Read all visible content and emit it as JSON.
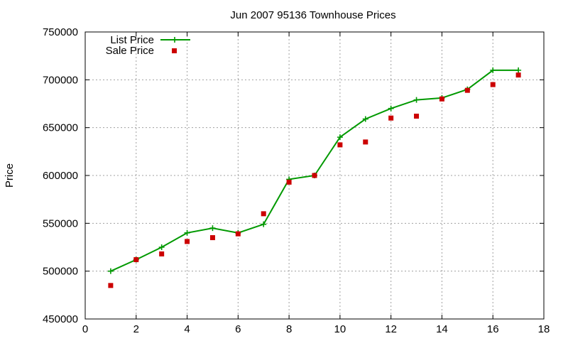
{
  "chart_data": {
    "type": "line",
    "title": "Jun 2007 95136 Townhouse Prices",
    "xlabel": "",
    "ylabel": "Price",
    "xlim": [
      0,
      18
    ],
    "ylim": [
      450000,
      750000
    ],
    "x_ticks": [
      0,
      2,
      4,
      6,
      8,
      10,
      12,
      14,
      16,
      18
    ],
    "y_ticks": [
      450000,
      500000,
      550000,
      600000,
      650000,
      700000,
      750000
    ],
    "grid": true,
    "legend_position": "top-left",
    "series": [
      {
        "name": "List Price",
        "style": "line-with-plus-markers",
        "color": "#009900",
        "x": [
          1,
          2,
          3,
          4,
          5,
          6,
          7,
          8,
          9,
          10,
          11,
          12,
          13,
          14,
          15,
          16,
          17
        ],
        "values": [
          500000,
          512000,
          525000,
          540000,
          545000,
          540000,
          549000,
          596000,
          600000,
          640000,
          659000,
          670000,
          679000,
          681000,
          690000,
          710000,
          710000
        ]
      },
      {
        "name": "Sale Price",
        "style": "square-markers",
        "color": "#cc0000",
        "x": [
          1,
          2,
          3,
          4,
          5,
          6,
          7,
          8,
          9,
          10,
          11,
          12,
          13,
          14,
          15,
          16,
          17
        ],
        "values": [
          485000,
          512000,
          518000,
          531000,
          535000,
          539000,
          560000,
          593000,
          600000,
          632000,
          635000,
          660000,
          662000,
          680000,
          689000,
          695000,
          705000
        ]
      }
    ]
  }
}
